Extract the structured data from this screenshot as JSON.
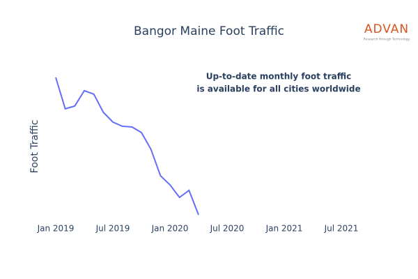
{
  "chart_data": {
    "type": "line",
    "title": "Bangor Maine Foot Traffic",
    "y_label": "Foot Traffic",
    "annotation": [
      "Up-to-date monthly foot traffic",
      "is available for all cities worldwide"
    ],
    "logo": {
      "name": "ADVAN",
      "tagline": "Research through Technology"
    },
    "x": [
      "2019-01",
      "2019-02",
      "2019-03",
      "2019-04",
      "2019-05",
      "2019-06",
      "2019-07",
      "2019-08",
      "2019-09",
      "2019-10",
      "2019-11",
      "2019-12",
      "2020-01",
      "2020-02",
      "2020-03",
      "2020-04"
    ],
    "series": [
      {
        "name": "Foot Traffic",
        "color": "#636efa",
        "values": [
          209,
          164,
          168,
          190,
          185,
          159,
          145,
          139,
          138,
          130,
          106,
          68,
          55,
          37,
          47,
          12
        ]
      }
    ],
    "xlim": [
      "2019-01",
      "2021-07"
    ],
    "xticks": [
      {
        "value": "2019-01",
        "label": "Jan 2019"
      },
      {
        "value": "2019-07",
        "label": "Jul 2019"
      },
      {
        "value": "2020-01",
        "label": "Jan 2020"
      },
      {
        "value": "2020-07",
        "label": "Jul 2020"
      },
      {
        "value": "2021-01",
        "label": "Jan 2021"
      },
      {
        "value": "2021-07",
        "label": "Jul 2021"
      }
    ],
    "ylim": [
      0,
      220
    ]
  }
}
